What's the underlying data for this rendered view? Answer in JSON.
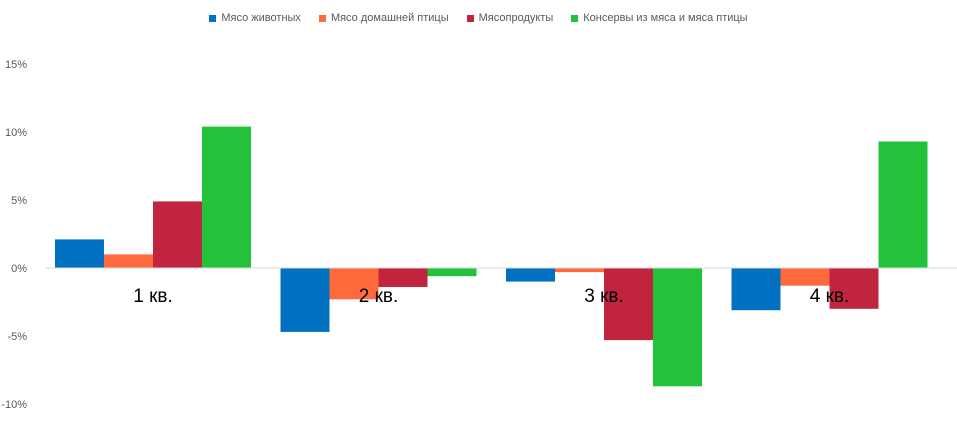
{
  "chart_data": {
    "type": "bar",
    "categories": [
      "1 кв.",
      "2 кв.",
      "3 кв.",
      "4 кв."
    ],
    "series": [
      {
        "name": "Мясо животных",
        "color": "#0070C0",
        "values": [
          2.1,
          -4.7,
          -1.0,
          -3.1
        ]
      },
      {
        "name": "Мясо домашней птицы",
        "color": "#FF6A3D",
        "values": [
          1.0,
          -2.3,
          -0.3,
          -1.3
        ]
      },
      {
        "name": "Мясопродукты",
        "color": "#C0243F",
        "values": [
          4.9,
          -1.4,
          -5.3,
          -3.0
        ]
      },
      {
        "name": "Консервы из мяса и мяса птицы",
        "color": "#22C23B",
        "values": [
          10.4,
          -0.6,
          -8.7,
          9.3
        ]
      }
    ],
    "yticks": [
      "15%",
      "10%",
      "5%",
      "0%",
      "-5%",
      "-10%"
    ],
    "ytick_values": [
      15,
      10,
      5,
      0,
      -5,
      -10
    ],
    "ylim": [
      -10,
      15
    ],
    "grid": false,
    "legend_position": "top"
  }
}
